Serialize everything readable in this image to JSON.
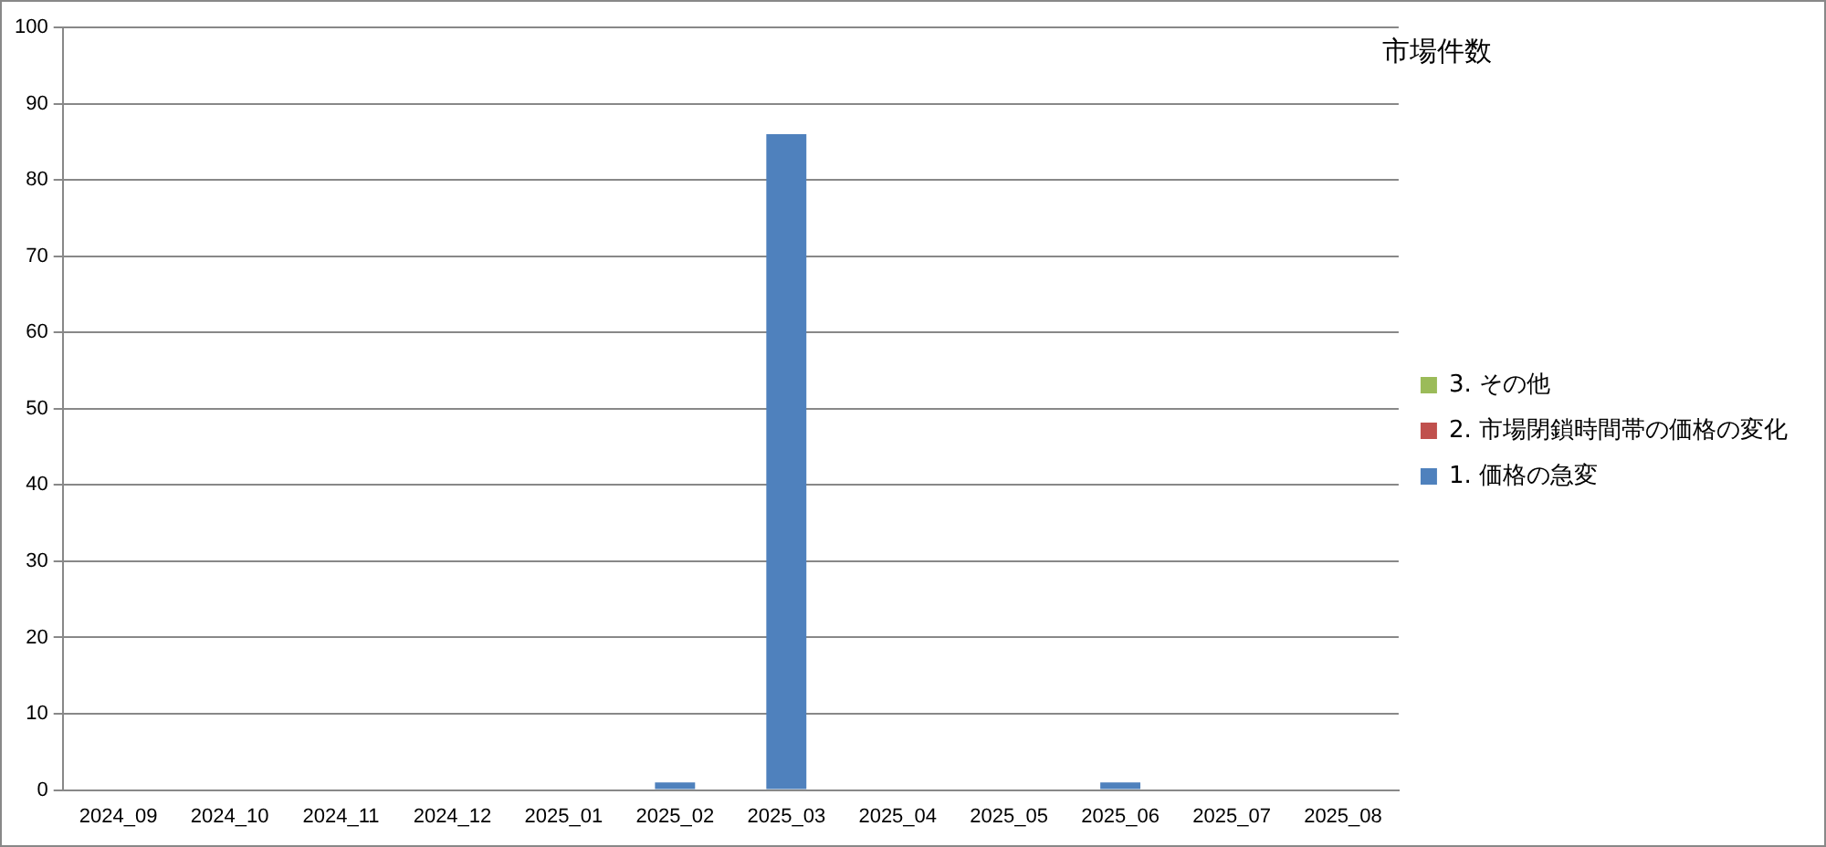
{
  "chart_data": {
    "type": "bar",
    "title": "市場件数",
    "stacked": true,
    "categories": [
      "2024_09",
      "2024_10",
      "2024_11",
      "2024_12",
      "2025_01",
      "2025_02",
      "2025_03",
      "2025_04",
      "2025_05",
      "2025_06",
      "2025_07",
      "2025_08"
    ],
    "series": [
      {
        "name": "1. 価格の急変",
        "color": "#4f81bd",
        "values": [
          0,
          0,
          0,
          0,
          0,
          1,
          86,
          0,
          0,
          1,
          0,
          0
        ]
      },
      {
        "name": "2. 市場閉鎖時間帯の価格の変化",
        "color": "#c0504d",
        "values": [
          0,
          0,
          0,
          0,
          0,
          0,
          0,
          0,
          0,
          0,
          0,
          0
        ]
      },
      {
        "name": "3. その他",
        "color": "#9bbb59",
        "values": [
          0,
          0,
          0,
          0,
          0,
          0,
          0,
          0,
          0,
          0,
          0,
          0
        ]
      }
    ],
    "ylim": [
      0,
      100
    ],
    "yticks": [
      0,
      10,
      20,
      30,
      40,
      50,
      60,
      70,
      80,
      90,
      100
    ],
    "grid": "y",
    "legend": "right"
  }
}
